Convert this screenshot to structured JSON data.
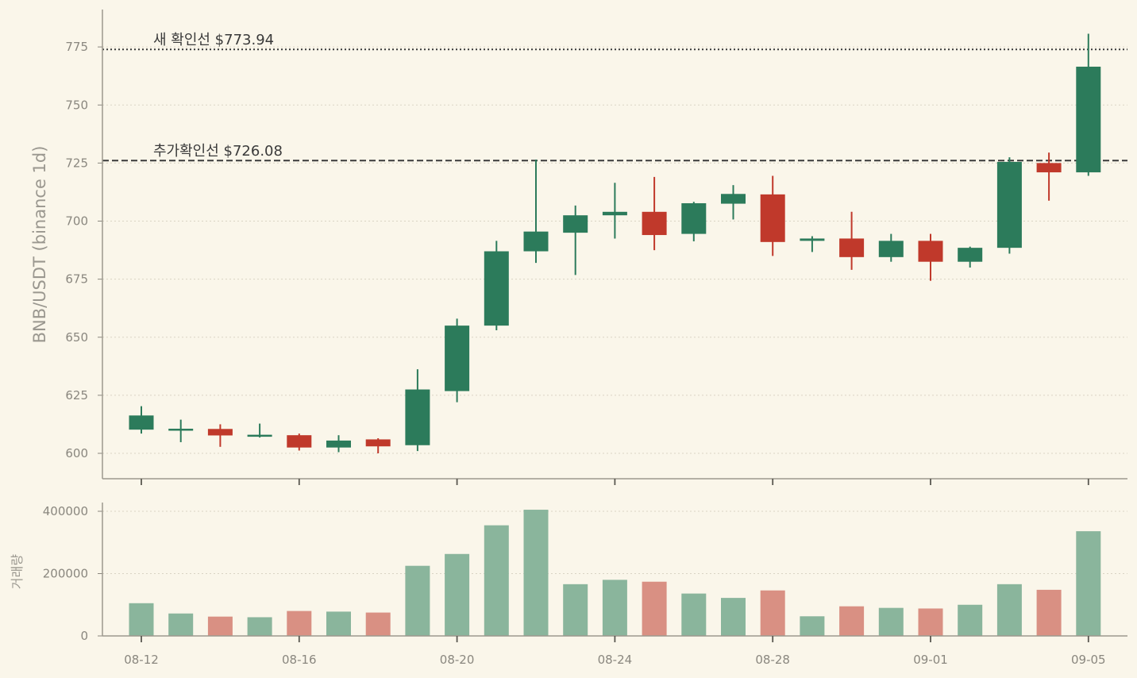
{
  "chart_data": [
    {
      "type": "candlestick",
      "ylabel": "BNB/USDT (binance 1d)",
      "ylim": [
        590,
        790
      ],
      "yticks": [
        600,
        625,
        650,
        675,
        700,
        725,
        750,
        775
      ],
      "grid": true,
      "x_dates": [
        "08-12",
        "08-13",
        "08-14",
        "08-15",
        "08-16",
        "08-17",
        "08-18",
        "08-19",
        "08-20",
        "08-21",
        "08-22",
        "08-23",
        "08-24",
        "08-25",
        "08-26",
        "08-27",
        "08-28",
        "08-29",
        "08-30",
        "08-31",
        "09-01",
        "09-02",
        "09-03",
        "09-04",
        "09-05"
      ],
      "x_tick_labels": [
        "08-12",
        "08-16",
        "08-20",
        "08-24",
        "08-28",
        "09-01",
        "09-05"
      ],
      "ohlc": [
        {
          "o": 610.2,
          "h": 620.3,
          "l": 608.5,
          "c": 616.3
        },
        {
          "o": 610.0,
          "h": 614.5,
          "l": 604.8,
          "c": 610.6
        },
        {
          "o": 610.5,
          "h": 612.5,
          "l": 602.8,
          "c": 607.7
        },
        {
          "o": 607.5,
          "h": 612.8,
          "l": 606.8,
          "c": 608.0
        },
        {
          "o": 607.8,
          "h": 608.5,
          "l": 601.2,
          "c": 602.5
        },
        {
          "o": 602.5,
          "h": 607.8,
          "l": 600.5,
          "c": 605.5
        },
        {
          "o": 606.0,
          "h": 606.5,
          "l": 600.0,
          "c": 603.0
        },
        {
          "o": 603.5,
          "h": 636.2,
          "l": 601.0,
          "c": 627.5
        },
        {
          "o": 626.8,
          "h": 658.0,
          "l": 622.0,
          "c": 655.0
        },
        {
          "o": 655.0,
          "h": 691.5,
          "l": 653.0,
          "c": 687.0
        },
        {
          "o": 687.0,
          "h": 726.5,
          "l": 682.0,
          "c": 695.5
        },
        {
          "o": 695.0,
          "h": 706.7,
          "l": 676.8,
          "c": 702.5
        },
        {
          "o": 702.5,
          "h": 716.5,
          "l": 692.5,
          "c": 704.0
        },
        {
          "o": 704.0,
          "h": 719.0,
          "l": 687.5,
          "c": 694.0
        },
        {
          "o": 694.5,
          "h": 708.3,
          "l": 691.3,
          "c": 707.7
        },
        {
          "o": 707.5,
          "h": 715.5,
          "l": 700.7,
          "c": 711.7
        },
        {
          "o": 711.5,
          "h": 719.5,
          "l": 685.0,
          "c": 691.0
        },
        {
          "o": 691.5,
          "h": 693.5,
          "l": 686.7,
          "c": 692.5
        },
        {
          "o": 692.5,
          "h": 704.0,
          "l": 679.0,
          "c": 684.5
        },
        {
          "o": 684.5,
          "h": 694.5,
          "l": 682.5,
          "c": 691.5
        },
        {
          "o": 691.5,
          "h": 694.5,
          "l": 674.3,
          "c": 682.5
        },
        {
          "o": 682.5,
          "h": 689.0,
          "l": 680.0,
          "c": 688.5
        },
        {
          "o": 688.5,
          "h": 727.5,
          "l": 686.0,
          "c": 725.5
        },
        {
          "o": 725.0,
          "h": 729.5,
          "l": 708.8,
          "c": 721.0
        },
        {
          "o": 721.0,
          "h": 780.7,
          "l": 719.5,
          "c": 766.5
        }
      ],
      "hlines": [
        {
          "value": 773.94,
          "label": "새 확인선 $773.94",
          "style": "dotted"
        },
        {
          "value": 726.08,
          "label": "추가확인선 $726.08",
          "style": "dashed"
        }
      ],
      "colors": {
        "up": "#2c7b5b",
        "down": "#c0392b",
        "up_volume": "#8ab59c",
        "down_volume": "#d99083"
      }
    },
    {
      "type": "bar",
      "ylabel": "거래량",
      "ylim": [
        0,
        420000
      ],
      "yticks": [
        0,
        200000,
        400000
      ],
      "yticklabels": [
        "0",
        "200000",
        "400000"
      ],
      "grid": true,
      "values": [
        105000,
        72000,
        62000,
        60000,
        80000,
        78000,
        75000,
        225000,
        263000,
        355000,
        405000,
        166000,
        180000,
        174000,
        136000,
        122000,
        146000,
        63000,
        95000,
        90000,
        88000,
        100000,
        166000,
        148000,
        336000
      ]
    }
  ]
}
